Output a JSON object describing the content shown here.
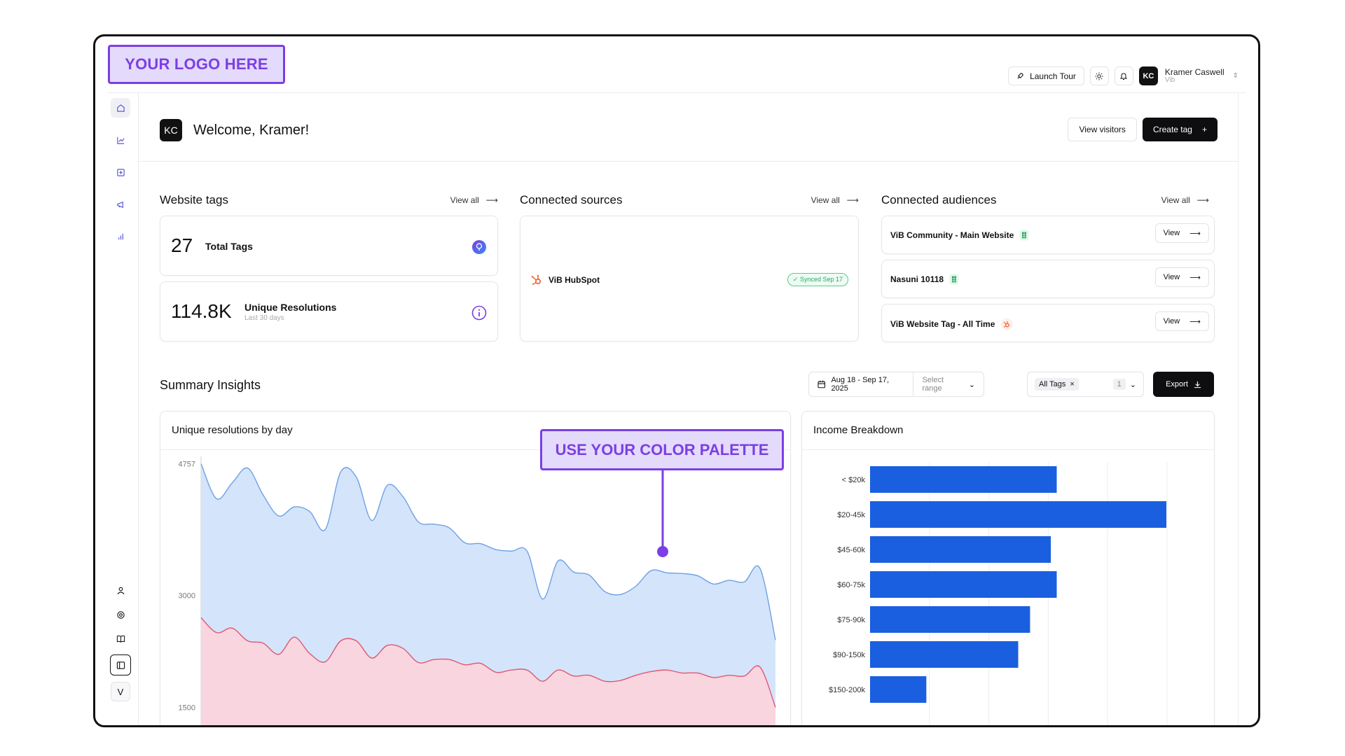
{
  "logo_text": "YOUR LOGO HERE",
  "palette_callout": "USE YOUR COLOR PALETTE",
  "topbar": {
    "launch_tour": "Launch Tour",
    "user_initials": "KC",
    "user_name": "Kramer Caswell",
    "user_org": "Vib"
  },
  "header": {
    "avatar_initials": "KC",
    "welcome": "Welcome, Kramer!",
    "view_visitors": "View visitors",
    "create_tag": "Create tag"
  },
  "website_tags": {
    "title": "Website tags",
    "view_all": "View all",
    "total_value": "27",
    "total_label": "Total Tags",
    "unique_value": "114.8K",
    "unique_label": "Unique Resolutions",
    "unique_sub": "Last 30 days"
  },
  "connected_sources": {
    "title": "Connected sources",
    "view_all": "View all",
    "source_name": "ViB HubSpot",
    "source_status": "✓ Synced Sep 17"
  },
  "connected_audiences": {
    "title": "Connected audiences",
    "view_all": "View all",
    "items": [
      {
        "name": "ViB Community - Main Website",
        "view": "View",
        "icon": "green-sheet-icon"
      },
      {
        "name": "Nasuni 10118",
        "view": "View",
        "icon": "green-sheet-icon"
      },
      {
        "name": "ViB Website Tag - All Time",
        "view": "View",
        "icon": "hubspot-icon"
      }
    ]
  },
  "insights": {
    "title": "Summary Insights",
    "date_range": "Aug 18 - Sep 17, 2025",
    "select_range": "Select range",
    "tag_filter": "All Tags",
    "tag_count": "1",
    "export": "Export"
  },
  "colors": {
    "accent": "#7b3fe4",
    "bar": "#1a5fe0",
    "area_blue": "#d4e4fb",
    "line_blue": "#6fa1e3",
    "area_pink": "#f9d6df",
    "line_pink": "#e05770"
  },
  "chart_data": [
    {
      "type": "area",
      "title": "Unique resolutions by day",
      "y_ticks": [
        "4757",
        "3000",
        "1500"
      ],
      "ylim": [
        1150,
        4800
      ],
      "grid": false,
      "series": [
        {
          "values": [
            4757,
            4290,
            4500,
            4700,
            4340,
            4060,
            4180,
            4120,
            3880,
            4650,
            4580,
            4000,
            4470,
            4320,
            3980,
            3950,
            3900,
            3700,
            3690,
            3610,
            3590,
            3590,
            2950,
            3460,
            3310,
            3270,
            3050,
            3010,
            3120,
            3330,
            3300,
            3290,
            3260,
            3150,
            3200,
            3180,
            3360,
            2400
          ]
        },
        {
          "values": [
            2700,
            2500,
            2560,
            2390,
            2360,
            2210,
            2440,
            2220,
            2110,
            2390,
            2390,
            2160,
            2330,
            2290,
            2100,
            2140,
            2140,
            2070,
            2090,
            1970,
            2000,
            2000,
            1850,
            2000,
            1920,
            1930,
            1850,
            1860,
            1930,
            1980,
            2000,
            1960,
            1960,
            1900,
            1930,
            1920,
            2040,
            1500
          ]
        }
      ]
    },
    {
      "type": "bar",
      "orientation": "horizontal",
      "title": "Income Breakdown",
      "categories": [
        "< $20k",
        "$20-45k",
        "$45-60k",
        "$60-75k",
        "$75-90k",
        "$90-150k",
        "$150-200k"
      ],
      "values": [
        63,
        100,
        61,
        63,
        54,
        50,
        19
      ],
      "xlim": [
        0,
        100
      ],
      "grid": true
    }
  ]
}
